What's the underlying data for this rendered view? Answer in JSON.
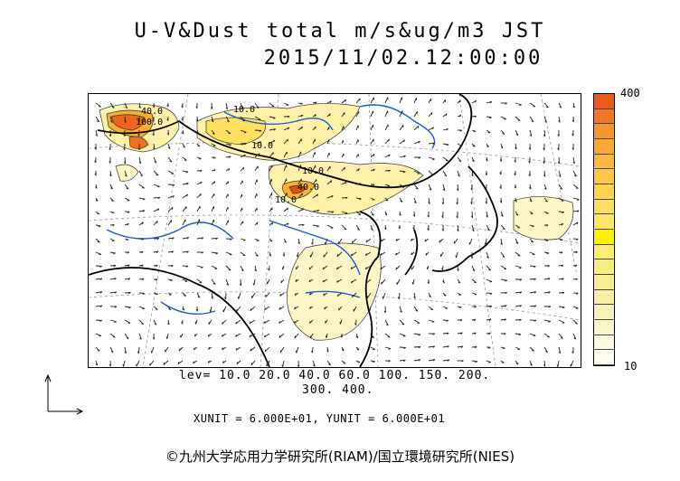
{
  "figure": {
    "title": "U-V&Dust total m/s&ug/m3 JST",
    "datetime": "2015/11/02.12:00:00"
  },
  "colorbar": {
    "max_label": "400",
    "min_label": "10",
    "colors": [
      "#f05a14",
      "#f4781e",
      "#f7962a",
      "#f9a834",
      "#fbba3c",
      "#fcc846",
      "#fdd44e",
      "#fde05a",
      "#fde866",
      "#fdf000",
      "#fbf070",
      "#f9ee80",
      "#f8ef92",
      "#f7f0a6",
      "#f7f3b8",
      "#f9f6cc",
      "#fcfae0",
      "#fdfcee"
    ]
  },
  "levels": {
    "line1": "lev= 10.0 20.0 40.0 60.0 100. 150. 200.",
    "line2": "300. 400."
  },
  "units": {
    "text": "XUNIT = 6.000E+01, YUNIT = 6.000E+01"
  },
  "contour_labels": [
    "40.0",
    "10.0",
    "100.0",
    "10.0",
    "10.0",
    "40.0",
    "10.0"
  ],
  "copyright": "©九州大学応用力学研究所(RIAM)/国立環境研究所(NIES)"
}
